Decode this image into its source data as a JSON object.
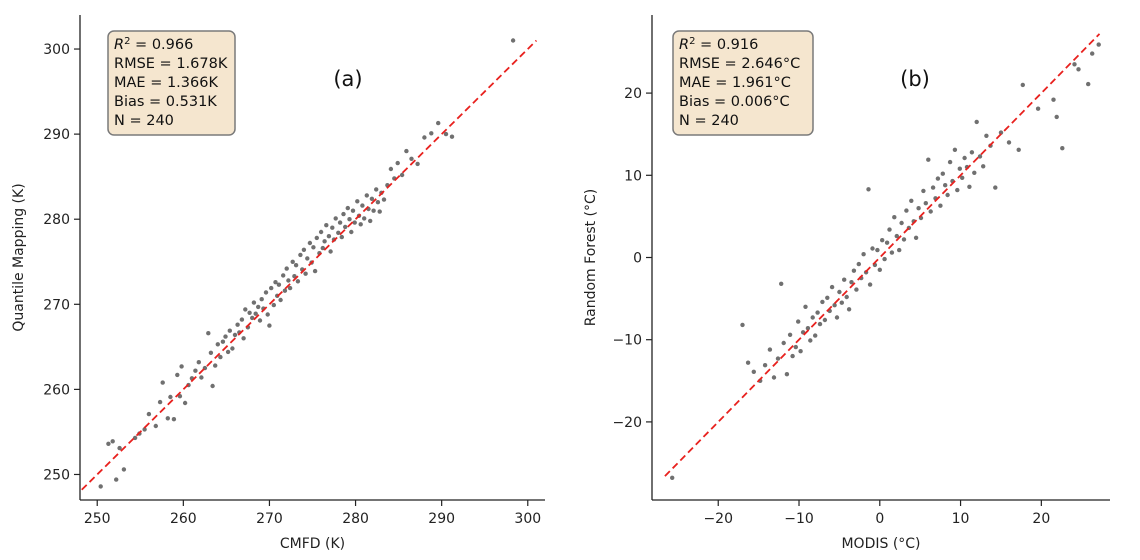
{
  "chart_data": [
    {
      "type": "scatter",
      "panel_label": "(a)",
      "xlabel": "CMFD (K)",
      "ylabel": "Quantile Mapping (K)",
      "xlim": [
        248,
        302
      ],
      "ylim": [
        247,
        304
      ],
      "xticks": [
        250,
        260,
        270,
        280,
        290,
        300
      ],
      "yticks": [
        250,
        260,
        270,
        280,
        290,
        300
      ],
      "xtick_labels": [
        "250",
        "260",
        "270",
        "280",
        "290",
        "300"
      ],
      "ytick_labels": [
        "250",
        "260",
        "270",
        "280",
        "290",
        "300"
      ],
      "reference_line": {
        "style": "dashed",
        "color": "#e8211e",
        "x": [
          248.2,
          301
        ],
        "y": [
          248.2,
          301
        ]
      },
      "stats": {
        "r2_symbol": "R",
        "r2_superscript": "2",
        "r2_value": " = 0.966",
        "rmse": "RMSE = 1.678K",
        "mae": "MAE = 1.366K",
        "bias": "Bias = 0.531K",
        "n": "N = 240"
      },
      "points": [
        [
          250.4,
          248.6
        ],
        [
          251.3,
          253.6
        ],
        [
          251.8,
          253.9
        ],
        [
          252.2,
          249.4
        ],
        [
          252.6,
          253.1
        ],
        [
          253.1,
          250.6
        ],
        [
          254.4,
          254.3
        ],
        [
          254.9,
          254.8
        ],
        [
          255.5,
          255.3
        ],
        [
          256.0,
          257.1
        ],
        [
          256.8,
          255.7
        ],
        [
          257.3,
          258.5
        ],
        [
          257.6,
          260.8
        ],
        [
          258.2,
          256.6
        ],
        [
          258.5,
          259.1
        ],
        [
          258.9,
          256.5
        ],
        [
          259.3,
          261.7
        ],
        [
          259.6,
          259.2
        ],
        [
          259.8,
          262.7
        ],
        [
          260.2,
          258.4
        ],
        [
          260.6,
          260.5
        ],
        [
          261.0,
          261.3
        ],
        [
          261.4,
          262.2
        ],
        [
          261.8,
          263.2
        ],
        [
          262.1,
          261.4
        ],
        [
          262.5,
          262.5
        ],
        [
          262.9,
          266.6
        ],
        [
          263.2,
          264.3
        ],
        [
          263.4,
          260.4
        ],
        [
          263.7,
          262.8
        ],
        [
          264.0,
          265.3
        ],
        [
          264.3,
          263.8
        ],
        [
          264.6,
          265.6
        ],
        [
          264.9,
          266.2
        ],
        [
          265.2,
          264.4
        ],
        [
          265.4,
          266.9
        ],
        [
          265.7,
          264.8
        ],
        [
          266.0,
          266.4
        ],
        [
          266.3,
          267.6
        ],
        [
          266.5,
          266.7
        ],
        [
          266.8,
          268.2
        ],
        [
          267.0,
          266.0
        ],
        [
          267.2,
          269.4
        ],
        [
          267.5,
          267.3
        ],
        [
          267.7,
          269.0
        ],
        [
          268.0,
          268.4
        ],
        [
          268.2,
          270.2
        ],
        [
          268.4,
          268.9
        ],
        [
          268.7,
          269.7
        ],
        [
          268.9,
          268.1
        ],
        [
          269.1,
          270.6
        ],
        [
          269.3,
          269.5
        ],
        [
          269.6,
          271.4
        ],
        [
          269.8,
          268.8
        ],
        [
          270.0,
          267.5
        ],
        [
          270.2,
          271.9
        ],
        [
          270.5,
          269.9
        ],
        [
          270.7,
          272.6
        ],
        [
          270.9,
          271.0
        ],
        [
          271.1,
          272.3
        ],
        [
          271.3,
          270.5
        ],
        [
          271.6,
          273.4
        ],
        [
          271.8,
          271.6
        ],
        [
          272.0,
          274.2
        ],
        [
          272.2,
          272.8
        ],
        [
          272.4,
          271.9
        ],
        [
          272.7,
          275.0
        ],
        [
          272.9,
          273.3
        ],
        [
          273.1,
          274.6
        ],
        [
          273.3,
          272.7
        ],
        [
          273.6,
          275.8
        ],
        [
          273.8,
          274.1
        ],
        [
          274.0,
          276.4
        ],
        [
          274.2,
          273.6
        ],
        [
          274.4,
          275.4
        ],
        [
          274.7,
          277.2
        ],
        [
          274.9,
          274.9
        ],
        [
          275.1,
          276.7
        ],
        [
          275.3,
          273.9
        ],
        [
          275.5,
          277.8
        ],
        [
          275.8,
          276.0
        ],
        [
          276.0,
          278.5
        ],
        [
          276.2,
          276.6
        ],
        [
          276.4,
          277.4
        ],
        [
          276.6,
          279.3
        ],
        [
          276.9,
          278.0
        ],
        [
          277.1,
          276.2
        ],
        [
          277.3,
          279.0
        ],
        [
          277.5,
          277.6
        ],
        [
          277.7,
          280.1
        ],
        [
          278.0,
          278.4
        ],
        [
          278.2,
          279.6
        ],
        [
          278.4,
          277.9
        ],
        [
          278.6,
          280.6
        ],
        [
          278.8,
          279.1
        ],
        [
          279.1,
          281.3
        ],
        [
          279.3,
          280.0
        ],
        [
          279.5,
          278.5
        ],
        [
          279.7,
          281.0
        ],
        [
          279.9,
          279.6
        ],
        [
          280.2,
          282.1
        ],
        [
          280.4,
          280.4
        ],
        [
          280.6,
          279.4
        ],
        [
          280.8,
          281.6
        ],
        [
          281.0,
          280.1
        ],
        [
          281.3,
          282.8
        ],
        [
          281.5,
          281.2
        ],
        [
          281.7,
          279.8
        ],
        [
          281.9,
          282.4
        ],
        [
          282.1,
          281.0
        ],
        [
          282.4,
          283.5
        ],
        [
          282.6,
          282.0
        ],
        [
          282.8,
          280.9
        ],
        [
          283.0,
          283.1
        ],
        [
          283.3,
          282.3
        ],
        [
          283.7,
          284.0
        ],
        [
          284.1,
          285.9
        ],
        [
          284.5,
          284.8
        ],
        [
          284.9,
          286.6
        ],
        [
          285.4,
          285.2
        ],
        [
          285.9,
          288.0
        ],
        [
          286.5,
          287.1
        ],
        [
          287.2,
          286.5
        ],
        [
          288.0,
          289.6
        ],
        [
          288.8,
          290.1
        ],
        [
          289.6,
          291.3
        ],
        [
          290.5,
          290.0
        ],
        [
          291.2,
          289.7
        ],
        [
          298.3,
          301.0
        ]
      ]
    },
    {
      "type": "scatter",
      "panel_label": "(b)",
      "xlabel": "MODIS (°C)",
      "ylabel": "Random Forest (°C)",
      "xlim": [
        -28.2,
        28.5
      ],
      "ylim": [
        -29.5,
        29.5
      ],
      "xticks": [
        -20,
        -10,
        0,
        10,
        20
      ],
      "yticks": [
        -20,
        -10,
        0,
        10,
        20
      ],
      "xtick_labels": [
        "−20",
        "−10",
        "0",
        "10",
        "20"
      ],
      "ytick_labels": [
        "−20",
        "−10",
        "0",
        "10",
        "20"
      ],
      "reference_line": {
        "style": "dashed",
        "color": "#e8211e",
        "x": [
          -26.6,
          27.2
        ],
        "y": [
          -26.6,
          27.2
        ]
      },
      "stats": {
        "r2_symbol": "R",
        "r2_superscript": "2",
        "r2_value": " = 0.916",
        "rmse": "RMSE = 2.646°C",
        "mae": "MAE = 1.961°C",
        "bias": "Bias = 0.006°C",
        "n": "N = 240"
      },
      "points": [
        [
          -25.7,
          -26.8
        ],
        [
          -17.0,
          -8.2
        ],
        [
          -16.3,
          -12.8
        ],
        [
          -15.6,
          -13.9
        ],
        [
          -14.8,
          -15.0
        ],
        [
          -14.2,
          -13.1
        ],
        [
          -13.6,
          -11.2
        ],
        [
          -13.1,
          -14.6
        ],
        [
          -12.6,
          -12.3
        ],
        [
          -12.2,
          -3.2
        ],
        [
          -11.9,
          -10.4
        ],
        [
          -11.5,
          -14.2
        ],
        [
          -11.1,
          -9.4
        ],
        [
          -10.8,
          -12.0
        ],
        [
          -10.4,
          -10.9
        ],
        [
          -10.1,
          -7.8
        ],
        [
          -9.8,
          -11.4
        ],
        [
          -9.5,
          -9.1
        ],
        [
          -9.2,
          -6.0
        ],
        [
          -8.9,
          -8.6
        ],
        [
          -8.6,
          -10.1
        ],
        [
          -8.3,
          -7.3
        ],
        [
          -8.0,
          -9.5
        ],
        [
          -7.7,
          -6.7
        ],
        [
          -7.4,
          -8.1
        ],
        [
          -7.1,
          -5.4
        ],
        [
          -6.8,
          -7.6
        ],
        [
          -6.5,
          -4.9
        ],
        [
          -6.2,
          -6.5
        ],
        [
          -5.9,
          -3.6
        ],
        [
          -5.6,
          -5.8
        ],
        [
          -5.3,
          -7.3
        ],
        [
          -5.0,
          -4.2
        ],
        [
          -4.7,
          -5.5
        ],
        [
          -4.4,
          -2.7
        ],
        [
          -4.1,
          -4.8
        ],
        [
          -3.8,
          -6.3
        ],
        [
          -3.5,
          -3.0
        ],
        [
          -3.2,
          -1.6
        ],
        [
          -2.9,
          -3.9
        ],
        [
          -2.6,
          -0.8
        ],
        [
          -2.3,
          -2.5
        ],
        [
          -2.0,
          0.4
        ],
        [
          -1.7,
          -1.8
        ],
        [
          -1.4,
          8.3
        ],
        [
          -1.2,
          -3.3
        ],
        [
          -0.9,
          1.1
        ],
        [
          -0.6,
          -0.9
        ],
        [
          -0.3,
          0.9
        ],
        [
          0.0,
          -1.5
        ],
        [
          0.3,
          2.1
        ],
        [
          0.6,
          -0.2
        ],
        [
          0.9,
          1.8
        ],
        [
          1.2,
          3.4
        ],
        [
          1.5,
          0.6
        ],
        [
          1.8,
          4.9
        ],
        [
          2.1,
          2.6
        ],
        [
          2.4,
          0.9
        ],
        [
          2.7,
          4.2
        ],
        [
          3.0,
          2.2
        ],
        [
          3.3,
          5.7
        ],
        [
          3.6,
          3.6
        ],
        [
          3.9,
          6.9
        ],
        [
          4.2,
          4.4
        ],
        [
          4.5,
          2.4
        ],
        [
          4.8,
          6.0
        ],
        [
          5.1,
          4.8
        ],
        [
          5.4,
          8.1
        ],
        [
          5.7,
          6.6
        ],
        [
          6.0,
          11.9
        ],
        [
          6.3,
          5.6
        ],
        [
          6.6,
          8.5
        ],
        [
          6.9,
          7.2
        ],
        [
          7.2,
          9.6
        ],
        [
          7.5,
          6.3
        ],
        [
          7.8,
          10.2
        ],
        [
          8.1,
          8.8
        ],
        [
          8.4,
          7.6
        ],
        [
          8.7,
          11.6
        ],
        [
          9.0,
          9.3
        ],
        [
          9.3,
          13.1
        ],
        [
          9.6,
          8.2
        ],
        [
          9.9,
          10.8
        ],
        [
          10.2,
          9.7
        ],
        [
          10.5,
          12.1
        ],
        [
          10.8,
          11.0
        ],
        [
          11.1,
          8.6
        ],
        [
          11.4,
          12.8
        ],
        [
          11.7,
          10.3
        ],
        [
          12.0,
          16.5
        ],
        [
          12.4,
          12.3
        ],
        [
          12.8,
          11.1
        ],
        [
          13.2,
          14.8
        ],
        [
          13.7,
          13.6
        ],
        [
          14.3,
          8.5
        ],
        [
          15.0,
          15.2
        ],
        [
          16.0,
          14.0
        ],
        [
          17.2,
          13.1
        ],
        [
          17.7,
          21.0
        ],
        [
          19.6,
          18.1
        ],
        [
          21.5,
          19.2
        ],
        [
          21.9,
          17.1
        ],
        [
          22.6,
          13.3
        ],
        [
          24.1,
          23.5
        ],
        [
          24.6,
          22.9
        ],
        [
          25.8,
          21.1
        ],
        [
          26.3,
          24.8
        ],
        [
          27.1,
          25.9
        ]
      ]
    }
  ]
}
